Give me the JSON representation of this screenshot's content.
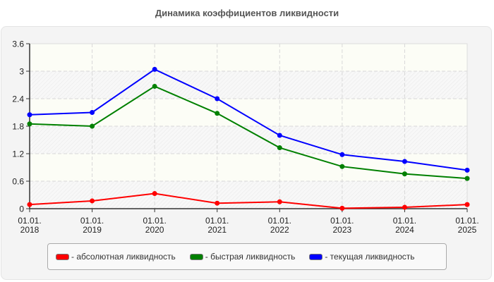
{
  "title": "Динамика коэффициентов ликвидности",
  "legend": [
    {
      "label": "- абсолютная ликвидность",
      "color": "#ff0000"
    },
    {
      "label": "- быстрая ликвидность",
      "color": "#008000"
    },
    {
      "label": "- текущая ликвидность",
      "color": "#0000ff"
    }
  ],
  "chart_data": {
    "type": "line",
    "title": "Динамика коэффициентов ликвидности",
    "xlabel": "",
    "ylabel": "",
    "categories": [
      "01.01.\n2018",
      "01.01.\n2019",
      "01.01.\n2020",
      "01.01.\n2021",
      "01.01.\n2022",
      "01.01.\n2023",
      "01.01.\n2024",
      "01.01.\n2025"
    ],
    "x_tick_lines": [
      [
        "01.01.",
        "2018"
      ],
      [
        "01.01.",
        "2019"
      ],
      [
        "01.01.",
        "2020"
      ],
      [
        "01.01.",
        "2021"
      ],
      [
        "01.01.",
        "2022"
      ],
      [
        "01.01.",
        "2023"
      ],
      [
        "01.01.",
        "2024"
      ],
      [
        "01.01.",
        "2025"
      ]
    ],
    "ylim": [
      0,
      3.6
    ],
    "y_ticks": [
      0,
      0.6,
      1.2,
      1.8,
      2.4,
      3,
      3.6
    ],
    "y_tick_labels": [
      "0",
      "0.6",
      "1.2",
      "1.8",
      "2.4",
      "3",
      "3.6"
    ],
    "grid": true,
    "legend_position": "bottom",
    "series": [
      {
        "name": "абсолютная ликвидность",
        "color": "#ff0000",
        "values": [
          0.09,
          0.17,
          0.33,
          0.12,
          0.15,
          0.01,
          0.03,
          0.09
        ]
      },
      {
        "name": "быстрая ликвидность",
        "color": "#008000",
        "values": [
          1.85,
          1.8,
          2.67,
          2.08,
          1.33,
          0.92,
          0.76,
          0.66
        ]
      },
      {
        "name": "текущая ликвидность",
        "color": "#0000ff",
        "values": [
          2.05,
          2.1,
          3.04,
          2.4,
          1.6,
          1.18,
          1.03,
          0.84
        ]
      }
    ]
  }
}
